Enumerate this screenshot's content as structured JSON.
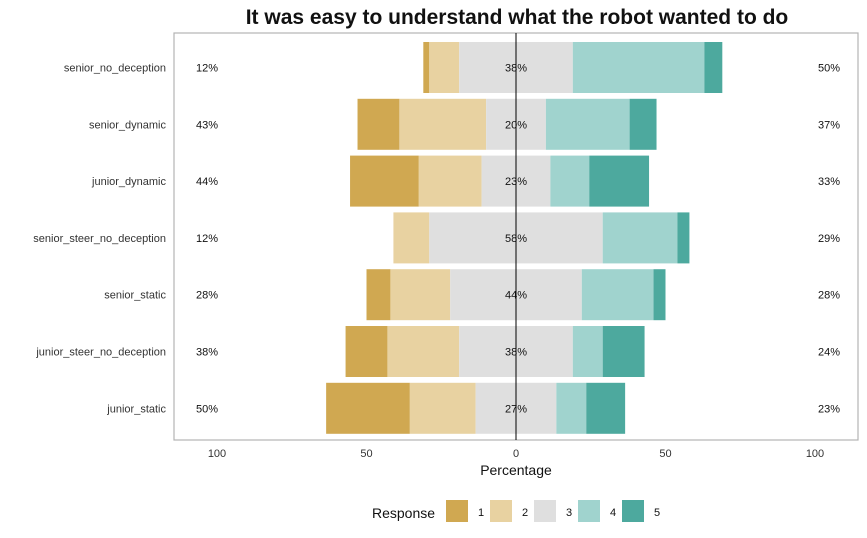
{
  "chart_data": {
    "type": "bar",
    "orientation": "horizontal",
    "stacking": "diverging",
    "title": "It was easy to understand what the robot wanted to do",
    "xlabel": "Percentage",
    "xlim": [
      -100,
      100
    ],
    "x_ticks": [
      -100,
      -50,
      0,
      50,
      100
    ],
    "x_tick_labels": [
      "100",
      "50",
      "0",
      "50",
      "100"
    ],
    "grid": false,
    "legend": {
      "title": "Response",
      "placement": "bottom",
      "levels": [
        "1",
        "2",
        "3",
        "4",
        "5"
      ],
      "colors": [
        "#D0A851",
        "#E8D2A1",
        "#DFDFDF",
        "#A0D3CE",
        "#4DA99E"
      ]
    },
    "categories": [
      "senior_no_deception",
      "senior_dynamic",
      "junior_dynamic",
      "senior_steer_no_deception",
      "senior_static",
      "junior_steer_no_deception",
      "junior_static"
    ],
    "series": [
      {
        "name": "1",
        "values": [
          2,
          14,
          23,
          0,
          8,
          14,
          28
        ]
      },
      {
        "name": "2",
        "values": [
          10,
          29,
          21,
          12,
          20,
          24,
          22
        ]
      },
      {
        "name": "3",
        "values": [
          38,
          20,
          23,
          58,
          44,
          38,
          27
        ]
      },
      {
        "name": "4",
        "values": [
          44,
          28,
          13,
          25,
          24,
          10,
          10
        ]
      },
      {
        "name": "5",
        "values": [
          6,
          9,
          20,
          4,
          4,
          14,
          13
        ]
      }
    ],
    "left_labels": [
      "12%",
      "43%",
      "44%",
      "12%",
      "28%",
      "38%",
      "50%"
    ],
    "center_labels": [
      "38%",
      "20%",
      "23%",
      "58%",
      "44%",
      "38%",
      "27%"
    ],
    "right_labels": [
      "50%",
      "37%",
      "33%",
      "29%",
      "28%",
      "24%",
      "23%"
    ]
  }
}
